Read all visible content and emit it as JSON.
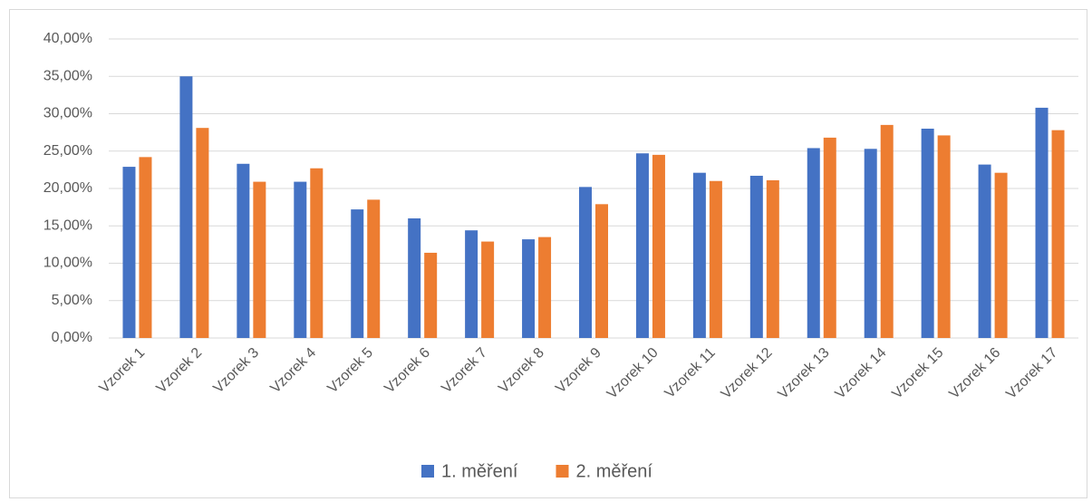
{
  "chart_data": {
    "type": "bar",
    "categories": [
      "Vzorek 1",
      "Vzorek 2",
      "Vzorek 3",
      "Vzorek 4",
      "Vzorek 5",
      "Vzorek 6",
      "Vzorek 7",
      "Vzorek 8",
      "Vzorek 9",
      "Vzorek 10",
      "Vzorek 11",
      "Vzorek 12",
      "Vzorek 13",
      "Vzorek 14",
      "Vzorek 15",
      "Vzorek 16",
      "Vzorek 17"
    ],
    "series": [
      {
        "name": "1. měření",
        "color": "#4472c4",
        "values": [
          22.9,
          35.0,
          23.3,
          20.9,
          17.2,
          16.0,
          14.4,
          13.2,
          20.2,
          24.7,
          22.1,
          21.7,
          25.4,
          25.3,
          28.0,
          23.2,
          30.8
        ]
      },
      {
        "name": "2. měření",
        "color": "#ed7d31",
        "values": [
          24.2,
          28.1,
          20.9,
          22.7,
          18.5,
          11.4,
          12.9,
          13.5,
          17.9,
          24.5,
          21.0,
          21.1,
          26.8,
          28.5,
          27.1,
          22.1,
          27.8
        ]
      }
    ],
    "ylim": [
      0,
      40
    ],
    "yticks": [
      {
        "value": 0,
        "label": "0,00%"
      },
      {
        "value": 5,
        "label": "5,00%"
      },
      {
        "value": 10,
        "label": "10,00%"
      },
      {
        "value": 15,
        "label": "15,00%"
      },
      {
        "value": 20,
        "label": "20,00%"
      },
      {
        "value": 25,
        "label": "25,00%"
      },
      {
        "value": 30,
        "label": "30,00%"
      },
      {
        "value": 35,
        "label": "35,00%"
      },
      {
        "value": 40,
        "label": "40,00%"
      }
    ],
    "grid": true,
    "legend": "bottom"
  }
}
